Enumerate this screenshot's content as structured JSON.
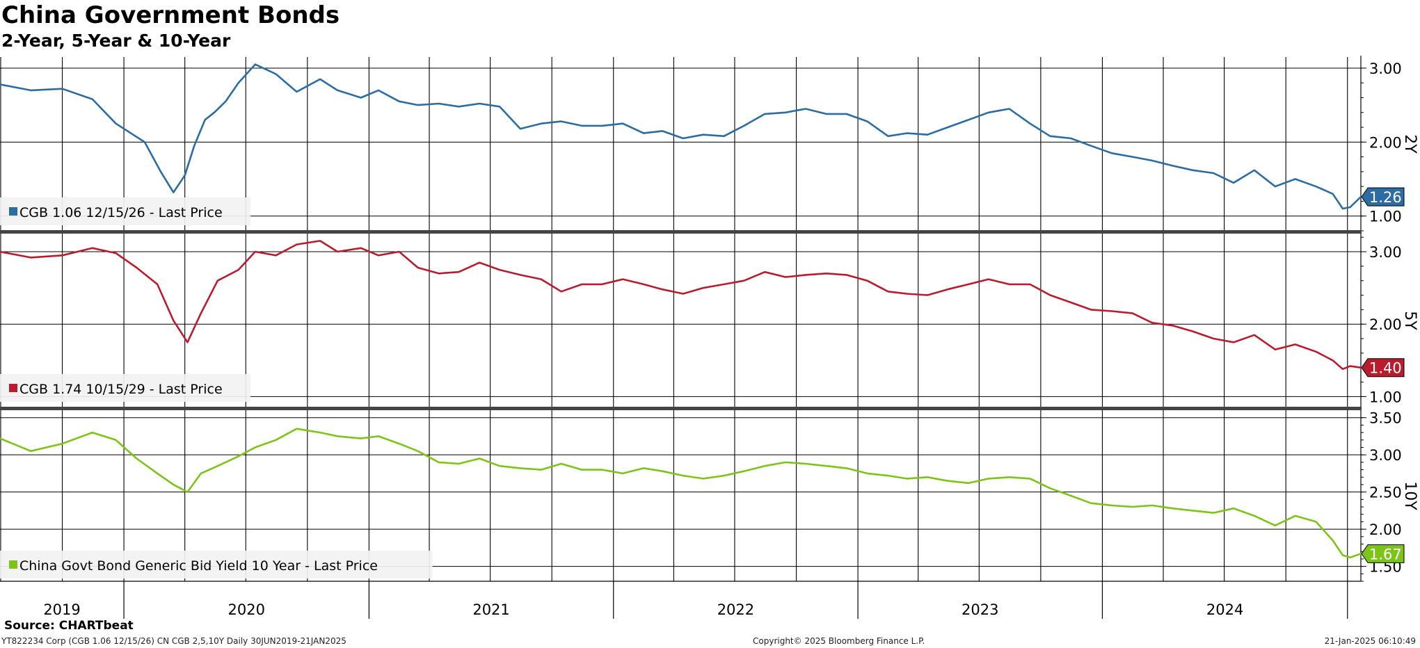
{
  "header": {
    "title": "China Government Bonds",
    "subtitle": "2-Year, 5-Year & 10-Year"
  },
  "footer": {
    "source": "Source: CHARTbeat",
    "left": "YT822234 Corp (CGB 1.06 12/15/26) CN CGB 2,5,10Y  Daily 30JUN2019-21JAN2025",
    "center": "Copyright© 2025 Bloomberg Finance L.P.",
    "right": "21-Jan-2025 06:10:49"
  },
  "chart_data": {
    "type": "line",
    "x_range": [
      "2019-06-30",
      "2025-01-21"
    ],
    "x_tick_labels": [
      "2019",
      "2020",
      "2021",
      "2022",
      "2023",
      "2024"
    ],
    "grid": true,
    "panels": [
      {
        "axis_label": "2Y",
        "legend": "CGB 1.06 12/15/26 - Last Price",
        "color": "#2b6ca3",
        "last_value": 1.26,
        "last_value_label": "1.26",
        "ylim": [
          0.8,
          3.15
        ],
        "y_ticks": [
          1.0,
          2.0,
          3.0
        ],
        "y_tick_labels": [
          "1.00",
          "2.00",
          "3.00"
        ],
        "series": {
          "name": "CGB 1.06 12/15/26 - Last Price",
          "x": [
            "2019-06-30",
            "2019-08-15",
            "2019-10-01",
            "2019-11-15",
            "2019-12-20",
            "2020-02-01",
            "2020-02-25",
            "2020-03-15",
            "2020-04-01",
            "2020-04-15",
            "2020-05-01",
            "2020-05-15",
            "2020-06-01",
            "2020-06-20",
            "2020-07-15",
            "2020-08-15",
            "2020-09-15",
            "2020-10-20",
            "2020-11-15",
            "2020-12-20",
            "2021-01-15",
            "2021-02-15",
            "2021-03-15",
            "2021-04-15",
            "2021-05-15",
            "2021-06-15",
            "2021-07-15",
            "2021-08-15",
            "2021-09-15",
            "2021-10-15",
            "2021-11-15",
            "2021-12-15",
            "2022-01-15",
            "2022-02-15",
            "2022-03-15",
            "2022-04-15",
            "2022-05-15",
            "2022-06-15",
            "2022-07-15",
            "2022-08-15",
            "2022-09-15",
            "2022-10-15",
            "2022-11-15",
            "2022-12-15",
            "2023-01-15",
            "2023-02-15",
            "2023-03-15",
            "2023-04-15",
            "2023-05-15",
            "2023-06-15",
            "2023-07-15",
            "2023-08-15",
            "2023-09-15",
            "2023-10-15",
            "2023-11-15",
            "2023-12-15",
            "2024-01-15",
            "2024-02-15",
            "2024-03-15",
            "2024-04-15",
            "2024-05-15",
            "2024-06-15",
            "2024-07-15",
            "2024-08-15",
            "2024-09-15",
            "2024-10-15",
            "2024-11-15",
            "2024-12-10",
            "2024-12-25",
            "2025-01-05",
            "2025-01-21"
          ],
          "values": [
            2.78,
            2.7,
            2.72,
            2.58,
            2.25,
            2.0,
            1.6,
            1.32,
            1.55,
            1.95,
            2.3,
            2.4,
            2.55,
            2.8,
            3.05,
            2.92,
            2.68,
            2.85,
            2.7,
            2.6,
            2.7,
            2.55,
            2.5,
            2.52,
            2.48,
            2.52,
            2.48,
            2.18,
            2.25,
            2.28,
            2.22,
            2.22,
            2.25,
            2.12,
            2.15,
            2.05,
            2.1,
            2.08,
            2.22,
            2.38,
            2.4,
            2.45,
            2.38,
            2.38,
            2.28,
            2.08,
            2.12,
            2.1,
            2.2,
            2.3,
            2.4,
            2.45,
            2.25,
            2.08,
            2.05,
            1.95,
            1.85,
            1.8,
            1.75,
            1.68,
            1.62,
            1.58,
            1.45,
            1.62,
            1.4,
            1.5,
            1.4,
            1.3,
            1.1,
            1.12,
            1.26
          ]
        }
      },
      {
        "axis_label": "5Y",
        "legend": "CGB 1.74 10/15/29 - Last Price",
        "color": "#b81c2e",
        "last_value": 1.4,
        "last_value_label": "1.40",
        "ylim": [
          0.85,
          3.25
        ],
        "y_ticks": [
          1.0,
          2.0,
          3.0
        ],
        "y_tick_labels": [
          "1.00",
          "2.00",
          "3.00"
        ],
        "series": {
          "name": "CGB 1.74 10/15/29 - Last Price",
          "x": [
            "2019-06-30",
            "2019-08-15",
            "2019-10-01",
            "2019-11-15",
            "2019-12-20",
            "2020-01-20",
            "2020-02-20",
            "2020-03-15",
            "2020-04-05",
            "2020-04-25",
            "2020-05-20",
            "2020-06-20",
            "2020-07-15",
            "2020-08-15",
            "2020-09-15",
            "2020-10-20",
            "2020-11-15",
            "2020-12-20",
            "2021-01-15",
            "2021-02-15",
            "2021-03-15",
            "2021-04-15",
            "2021-05-15",
            "2021-06-15",
            "2021-07-15",
            "2021-08-15",
            "2021-09-15",
            "2021-10-15",
            "2021-11-15",
            "2021-12-15",
            "2022-01-15",
            "2022-02-15",
            "2022-03-15",
            "2022-04-15",
            "2022-05-15",
            "2022-06-15",
            "2022-07-15",
            "2022-08-15",
            "2022-09-15",
            "2022-10-15",
            "2022-11-15",
            "2022-12-15",
            "2023-01-15",
            "2023-02-15",
            "2023-03-15",
            "2023-04-15",
            "2023-05-15",
            "2023-06-15",
            "2023-07-15",
            "2023-08-15",
            "2023-09-15",
            "2023-10-15",
            "2023-11-15",
            "2023-12-15",
            "2024-01-15",
            "2024-02-15",
            "2024-03-15",
            "2024-04-15",
            "2024-05-15",
            "2024-06-15",
            "2024-07-15",
            "2024-08-15",
            "2024-09-15",
            "2024-10-15",
            "2024-11-15",
            "2024-12-10",
            "2024-12-25",
            "2025-01-05",
            "2025-01-21"
          ],
          "values": [
            3.0,
            2.92,
            2.95,
            3.05,
            2.98,
            2.78,
            2.55,
            2.05,
            1.75,
            2.15,
            2.6,
            2.75,
            3.0,
            2.95,
            3.1,
            3.15,
            3.0,
            3.05,
            2.95,
            3.0,
            2.78,
            2.7,
            2.72,
            2.85,
            2.75,
            2.68,
            2.62,
            2.45,
            2.55,
            2.55,
            2.62,
            2.55,
            2.48,
            2.42,
            2.5,
            2.55,
            2.6,
            2.72,
            2.65,
            2.68,
            2.7,
            2.68,
            2.6,
            2.45,
            2.42,
            2.4,
            2.48,
            2.55,
            2.62,
            2.55,
            2.55,
            2.4,
            2.3,
            2.2,
            2.18,
            2.15,
            2.02,
            1.98,
            1.9,
            1.8,
            1.75,
            1.85,
            1.65,
            1.72,
            1.62,
            1.5,
            1.38,
            1.42,
            1.4
          ]
        }
      },
      {
        "axis_label": "10Y",
        "legend": "China Govt Bond Generic Bid Yield 10 Year - Last Price",
        "color": "#7cc417",
        "last_value": 1.67,
        "last_value_label": "1.67",
        "ylim": [
          1.3,
          3.6
        ],
        "y_ticks": [
          1.5,
          2.0,
          2.5,
          3.0,
          3.5
        ],
        "y_tick_labels": [
          "1.50",
          "2.00",
          "2.50",
          "3.00",
          "3.50"
        ],
        "series": {
          "name": "China Govt Bond Generic Bid Yield 10 Year - Last Price",
          "x": [
            "2019-06-30",
            "2019-08-15",
            "2019-10-01",
            "2019-11-15",
            "2019-12-20",
            "2020-01-20",
            "2020-02-20",
            "2020-03-15",
            "2020-04-05",
            "2020-04-25",
            "2020-05-20",
            "2020-06-20",
            "2020-07-15",
            "2020-08-15",
            "2020-09-15",
            "2020-10-20",
            "2020-11-15",
            "2020-12-20",
            "2021-01-15",
            "2021-02-15",
            "2021-03-15",
            "2021-04-15",
            "2021-05-15",
            "2021-06-15",
            "2021-07-15",
            "2021-08-15",
            "2021-09-15",
            "2021-10-15",
            "2021-11-15",
            "2021-12-15",
            "2022-01-15",
            "2022-02-15",
            "2022-03-15",
            "2022-04-15",
            "2022-05-15",
            "2022-06-15",
            "2022-07-15",
            "2022-08-15",
            "2022-09-15",
            "2022-10-15",
            "2022-11-15",
            "2022-12-15",
            "2023-01-15",
            "2023-02-15",
            "2023-03-15",
            "2023-04-15",
            "2023-05-15",
            "2023-06-15",
            "2023-07-15",
            "2023-08-15",
            "2023-09-15",
            "2023-10-15",
            "2023-11-15",
            "2023-12-15",
            "2024-01-15",
            "2024-02-15",
            "2024-03-15",
            "2024-04-15",
            "2024-05-15",
            "2024-06-15",
            "2024-07-15",
            "2024-08-15",
            "2024-09-15",
            "2024-10-15",
            "2024-11-15",
            "2024-12-10",
            "2024-12-25",
            "2025-01-05",
            "2025-01-21"
          ],
          "values": [
            3.22,
            3.05,
            3.15,
            3.3,
            3.2,
            2.95,
            2.75,
            2.6,
            2.5,
            2.75,
            2.85,
            2.98,
            3.1,
            3.2,
            3.35,
            3.3,
            3.25,
            3.22,
            3.25,
            3.15,
            3.05,
            2.9,
            2.88,
            2.95,
            2.85,
            2.82,
            2.8,
            2.88,
            2.8,
            2.8,
            2.75,
            2.82,
            2.78,
            2.72,
            2.68,
            2.72,
            2.78,
            2.85,
            2.9,
            2.88,
            2.85,
            2.82,
            2.75,
            2.72,
            2.68,
            2.7,
            2.65,
            2.62,
            2.68,
            2.7,
            2.68,
            2.55,
            2.45,
            2.35,
            2.32,
            2.3,
            2.32,
            2.28,
            2.25,
            2.22,
            2.28,
            2.18,
            2.05,
            2.18,
            2.1,
            1.85,
            1.65,
            1.62,
            1.67
          ]
        }
      }
    ]
  }
}
